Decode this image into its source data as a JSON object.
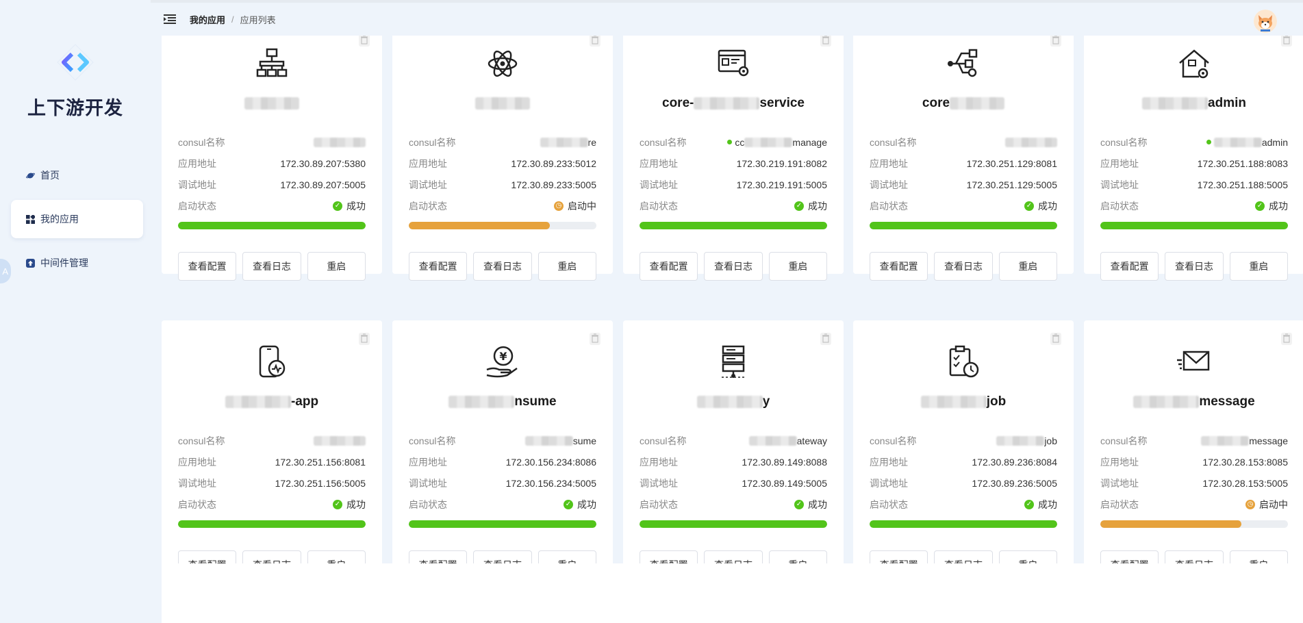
{
  "brand": {
    "name": "上下游开发"
  },
  "nav": [
    {
      "label": "首页",
      "icon": "planet-icon",
      "active": false
    },
    {
      "label": "我的应用",
      "icon": "grid-apps-icon",
      "active": true
    },
    {
      "label": "中间件管理",
      "icon": "upload-box-icon",
      "active": false
    }
  ],
  "side_bubble": "A",
  "breadcrumb": {
    "current": "我的应用",
    "separator": "/",
    "last": "应用列表"
  },
  "labels": {
    "consul": "consul名称",
    "app_addr": "应用地址",
    "debug_addr": "调试地址",
    "status": "启动状态",
    "btn_config": "查看配置",
    "btn_log": "查看日志",
    "btn_restart": "重启"
  },
  "colors": {
    "success": "#52c41a",
    "pending": "#e6a23c",
    "track": "#ebeef2"
  },
  "cards": [
    {
      "icon": "network-hierarchy-icon",
      "name_pre": "",
      "name_suf": "",
      "consul_suf": "",
      "consul_dot": false,
      "app_addr": "172.30.89.207:5380",
      "debug_addr": "172.30.89.207:5005",
      "status": "成功",
      "progress": 1.0
    },
    {
      "icon": "atom-icon",
      "name_pre": "",
      "name_suf": "",
      "consul_suf": "re",
      "consul_dot": false,
      "app_addr": "172.30.89.233:5012",
      "debug_addr": "172.30.89.233:5005",
      "status": "启动中",
      "progress": 0.75
    },
    {
      "icon": "browser-settings-icon",
      "name_pre": "core-",
      "name_suf": "service",
      "consul_suf": "manage",
      "consul_pre": "cc",
      "consul_dot": true,
      "app_addr": "172.30.219.191:8082",
      "debug_addr": "172.30.219.191:5005",
      "status": "成功",
      "progress": 1.0
    },
    {
      "icon": "usb-share-icon",
      "name_pre": "core",
      "name_suf": "",
      "consul_suf": "",
      "consul_dot": false,
      "app_addr": "172.30.251.129:8081",
      "debug_addr": "172.30.251.129:5005",
      "status": "成功",
      "progress": 1.0
    },
    {
      "icon": "house-settings-icon",
      "name_pre": "",
      "name_suf": "admin",
      "consul_suf": "admin",
      "consul_dot": true,
      "app_addr": "172.30.251.188:8083",
      "debug_addr": "172.30.251.188:5005",
      "status": "成功",
      "progress": 1.0
    },
    {
      "icon": "mobile-app-icon",
      "name_pre": "",
      "name_suf": "-app",
      "consul_suf": "",
      "consul_dot": false,
      "app_addr": "172.30.251.156:8081",
      "debug_addr": "172.30.251.156:5005",
      "status": "成功",
      "progress": 1.0
    },
    {
      "icon": "yen-hand-icon",
      "name_pre": "",
      "name_suf": "nsume",
      "consul_suf": "sume",
      "consul_dot": false,
      "app_addr": "172.30.156.234:8086",
      "debug_addr": "172.30.156.234:5005",
      "status": "成功",
      "progress": 1.0
    },
    {
      "icon": "server-stack-icon",
      "name_pre": "",
      "name_suf": "y",
      "consul_suf": "ateway",
      "consul_dot": false,
      "app_addr": "172.30.89.149:8088",
      "debug_addr": "172.30.89.149:5005",
      "status": "成功",
      "progress": 1.0
    },
    {
      "icon": "clipboard-clock-icon",
      "name_pre": "",
      "name_suf": "job",
      "consul_suf": "job",
      "consul_dot": false,
      "app_addr": "172.30.89.236:8084",
      "debug_addr": "172.30.89.236:5005",
      "status": "成功",
      "progress": 1.0
    },
    {
      "icon": "envelope-icon",
      "name_pre": "",
      "name_suf": "message",
      "consul_suf": "message",
      "consul_dot": false,
      "app_addr": "172.30.28.153:8085",
      "debug_addr": "172.30.28.153:5005",
      "status": "启动中",
      "progress": 0.75
    }
  ]
}
